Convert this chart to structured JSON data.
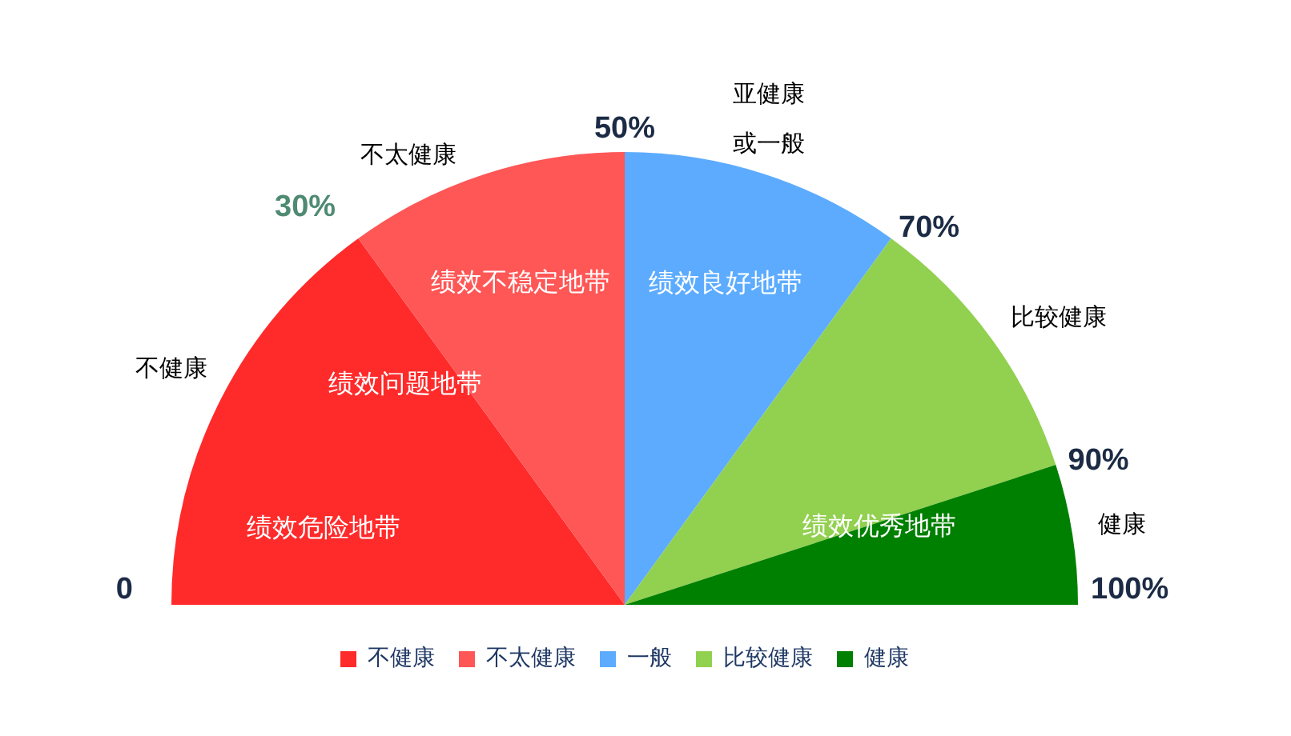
{
  "chart_data": {
    "type": "pie",
    "categories": [
      "不健康",
      "不太健康",
      "一般",
      "比较健康",
      "健康"
    ],
    "values": [
      30,
      20,
      20,
      20,
      10
    ],
    "colors": [
      "#ff2a2a",
      "#ff5656",
      "#5cabff",
      "#92d050",
      "#008000"
    ],
    "legend": "bottom",
    "annotations": [
      "0",
      "30%",
      "50%",
      "70%",
      "90%",
      "100%",
      "不健康",
      "不太健康",
      "亚健康",
      "或一般",
      "比较健康",
      "健康",
      "绩效危险地带",
      "绩效问题地带",
      "绩效不稳定地带",
      "绩效良好地带",
      "绩效优秀地带"
    ]
  }
}
